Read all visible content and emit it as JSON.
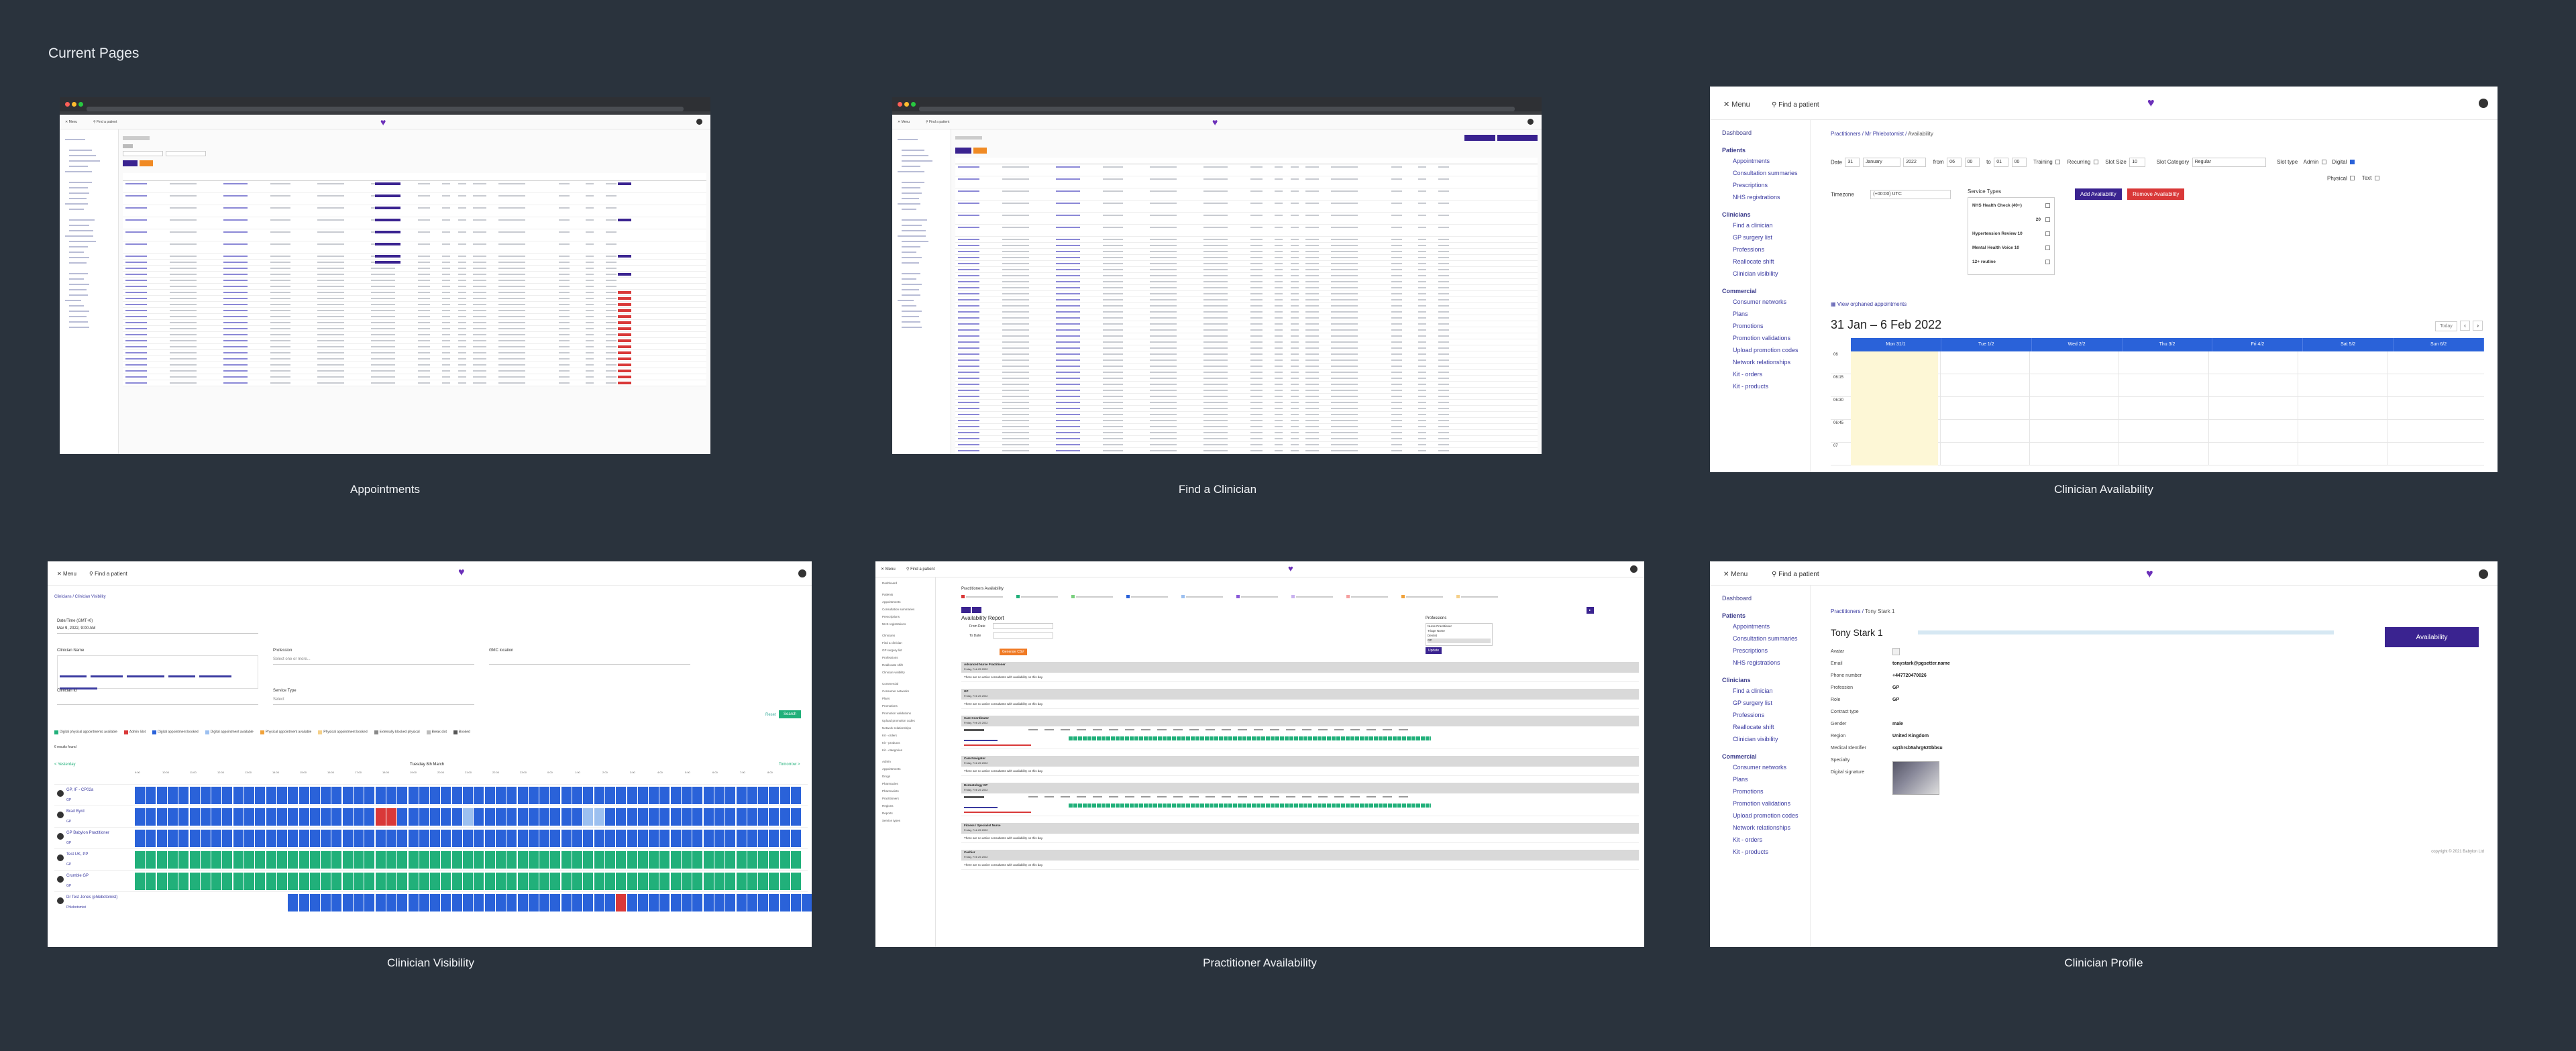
{
  "board": {
    "title": "Current Pages"
  },
  "captions": {
    "appointments": "Appointments",
    "find_clinician": "Find a Clinician",
    "clinician_availability": "Clinician Availability",
    "clinician_visibility": "Clinician Visibility",
    "practitioner_availability": "Practitioner Availability",
    "clinician_profile": "Clinician Profile"
  },
  "availability": {
    "menu": "Menu",
    "find_patient": "Find a patient",
    "breadcrumb": [
      "Practitioners",
      "Mr Phlebotomist",
      "Availability"
    ],
    "nav": {
      "dashboard": "Dashboard",
      "patients": "Patients",
      "patient_items": [
        "Appointments",
        "Consultation summaries",
        "Prescriptions",
        "NHS registrations"
      ],
      "clinicians": "Clinicians",
      "clinician_items": [
        "Find a clinician",
        "GP surgery list",
        "Professions",
        "Reallocate shift",
        "Clinician visibility"
      ],
      "commercial": "Commercial",
      "commercial_items": [
        "Consumer networks",
        "Plans",
        "Promotions",
        "Promotion validations",
        "Upload promotion codes",
        "Network relationships",
        "Kit - orders",
        "Kit - products"
      ]
    },
    "form": {
      "date_label": "Date",
      "day": "31",
      "month": "January",
      "year": "2022",
      "from_label": "from",
      "from_h": "06",
      "from_m": "00",
      "to_label": "to",
      "to_h": "01",
      "to_m": "00",
      "training": "Training",
      "recurring": "Recurring",
      "slot_size_label": "Slot Size",
      "slot_size": "10",
      "slot_category_label": "Slot Category",
      "slot_category": "Regular",
      "slot_type_label": "Slot type",
      "admin": "Admin",
      "digital": "Digital",
      "physical": "Physical",
      "text": "Text",
      "timezone_label": "Timezone",
      "timezone": "(+00:00) UTC",
      "service_types_label": "Service Types",
      "service_types": [
        {
          "name": "NHS Health Check (40+)",
          "value": ""
        },
        {
          "name": "",
          "value": "20"
        },
        {
          "name": "Hypertension Review 10",
          "value": ""
        },
        {
          "name": "Mental Health Voice 10",
          "value": ""
        },
        {
          "name": "12+ routine",
          "value": ""
        }
      ],
      "add_button": "Add Availability",
      "remove_button": "Remove Availability"
    },
    "view_link": "View orphaned appointments",
    "week_title": "31 Jan – 6 Feb 2022",
    "today_button": "Today",
    "days": [
      "Mon 31/1",
      "Tue 1/2",
      "Wed 2/2",
      "Thu 3/2",
      "Fri 4/2",
      "Sat 5/2",
      "Sun 6/2"
    ],
    "times": [
      "06",
      "06:15",
      "06:30",
      "06:45",
      "07"
    ]
  },
  "visibility": {
    "menu": "Menu",
    "find_patient": "Find a patient",
    "breadcrumb": "Clinicians / Clinician Visibility",
    "date_label": "Date/Time (GMT+0)",
    "date_value": "Mar 9, 2022, 9:00 AM",
    "clinician_name_label": "Clinician Name",
    "profession_label": "Profession",
    "profession_placeholder": "Select one or more...",
    "gmc_label": "GMC location",
    "clinician_id_label": "Clinician Id",
    "service_type_label": "Service Type",
    "service_placeholder": "Select",
    "reset": "Reset",
    "search": "Search",
    "legend": [
      "Digital physical appointments available",
      "Admin Slot",
      "Digital appointment booked",
      "Digital appointment available",
      "Physical appointment available",
      "Physical appointment booked",
      "Externally blocked physical",
      "Break slot",
      "Booked"
    ],
    "results_found": "6 results found",
    "prev": "< Yesterday",
    "next": "Tomorrow >",
    "day_title": "Tuesday 8th March",
    "rows": [
      {
        "name": "GP, IF - CP02a",
        "sub": "GP"
      },
      {
        "name": "Brad Byrd",
        "sub": "GP"
      },
      {
        "name": "GP Babylon Practitioner",
        "sub": "GP"
      },
      {
        "name": "Test UK, PP",
        "sub": "GP"
      },
      {
        "name": "Crumble GP",
        "sub": "GP"
      },
      {
        "name": "Dr Test Jones (phlebotomist)",
        "sub": "Phlebotomist"
      }
    ]
  },
  "profile": {
    "menu": "Menu",
    "find_patient": "Find a patient",
    "breadcrumb": [
      "Practitioners",
      "Tony Stark 1"
    ],
    "name": "Tony Stark 1",
    "availability_button": "Availability",
    "fields": [
      {
        "label": "Avatar",
        "value": ""
      },
      {
        "label": "Email",
        "value": "tonystark@pgsetter.name"
      },
      {
        "label": "Phone number",
        "value": "+447720470026"
      },
      {
        "label": "Profession",
        "value": "GP"
      },
      {
        "label": "Role",
        "value": "GP"
      },
      {
        "label": "Contract type",
        "value": ""
      },
      {
        "label": "Gender",
        "value": "male"
      },
      {
        "label": "Region",
        "value": "United Kingdom"
      },
      {
        "label": "Medical Identifier",
        "value": "sq1hrsb5ahrg620bbsu"
      },
      {
        "label": "Specialty",
        "value": ""
      },
      {
        "label": "Digital signature",
        "value": ""
      }
    ],
    "copyright": "copyright © 2021 Babylon Ltd",
    "nav": {
      "dashboard": "Dashboard",
      "patients": "Patients",
      "patient_items": [
        "Appointments",
        "Consultation summaries",
        "Prescriptions",
        "NHS registrations"
      ],
      "clinicians": "Clinicians",
      "clinician_items": [
        "Find a clinician",
        "GP surgery list",
        "Professions",
        "Reallocate shift",
        "Clinician visibility"
      ],
      "commercial": "Commercial",
      "commercial_items": [
        "Consumer networks",
        "Plans",
        "Promotions",
        "Promotion validations",
        "Upload promotion codes",
        "Network relationships",
        "Kit - orders",
        "Kit - products"
      ]
    }
  },
  "practitioner": {
    "menu": "Menu",
    "find_patient": "Find a patient",
    "title": "Practitioners Availability",
    "report_title": "Availability Report",
    "from_label": "From Date",
    "to_label": "To Date",
    "generate": "Generate CSV",
    "professions_label": "Professions",
    "professions": [
      "Nurse Practitioner",
      "Triage Nurse",
      "Dentist",
      "GP"
    ],
    "update": "Update",
    "sections": [
      {
        "name": "Advanced Nurse Practitioner",
        "date": "Friday, Feb 25 2022"
      },
      {
        "name": "GP",
        "date": "Friday, Feb 25 2022"
      },
      {
        "name": "Care Coordinator",
        "date": "Friday, Feb 25 2022"
      },
      {
        "name": "Care Navigator",
        "date": "Friday, Feb 25 2022"
      },
      {
        "name": "Dermatology GP",
        "date": "Friday, Feb 25 2022"
      },
      {
        "name": "Fitness / Specialist Nurse",
        "date": "Friday, Feb 25 2022"
      },
      {
        "name": "Cashier",
        "date": "Friday, Feb 25 2022"
      }
    ],
    "empty_text": "There are no active consultants with availability on this day."
  }
}
